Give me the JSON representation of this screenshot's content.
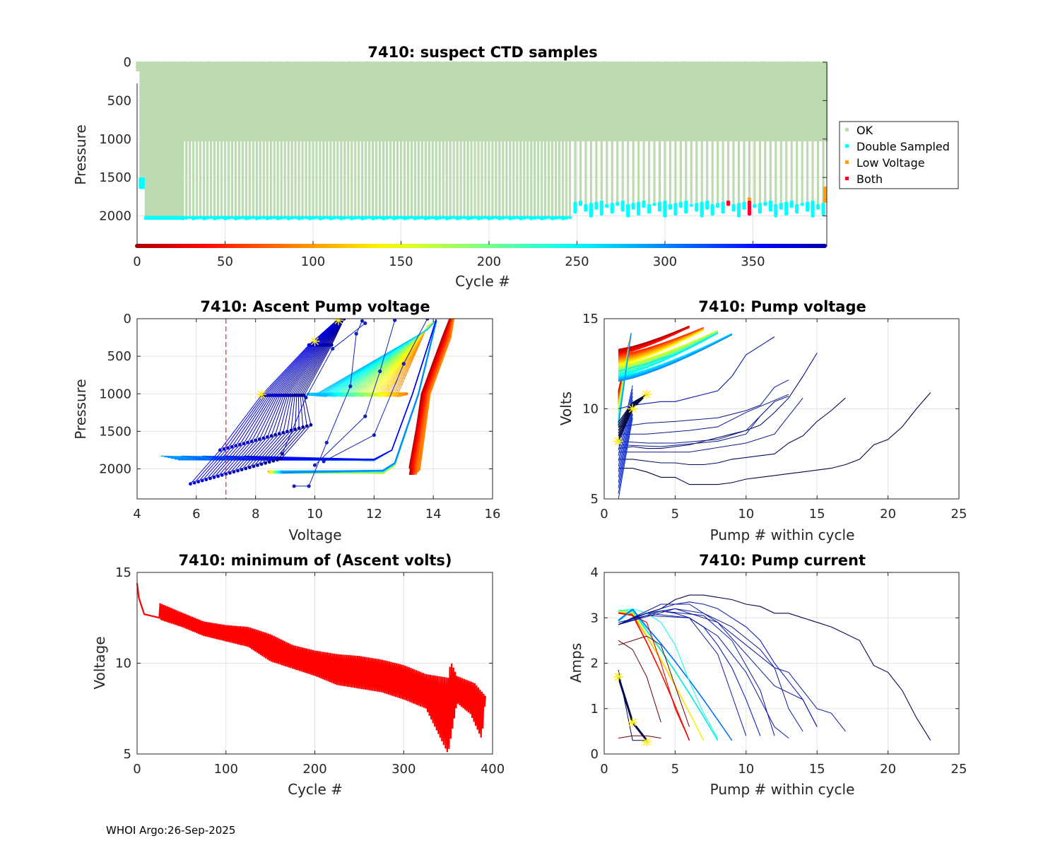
{
  "footer": "WHOI Argo:26-Sep-2025",
  "chart_data": [
    {
      "id": "suspect_ctd",
      "type": "scatter",
      "title": "7410: suspect CTD samples",
      "xlabel": "Cycle #",
      "ylabel": "Pressure",
      "xlim": [
        0,
        392
      ],
      "ylim": [
        2400,
        0
      ],
      "y_reversed": true,
      "xticks": [
        0,
        50,
        100,
        150,
        200,
        250,
        300,
        350
      ],
      "yticks": [
        0,
        500,
        1000,
        1500,
        2000
      ],
      "grid": true,
      "colorbar": "jet-reversed along x-axis (cycle color)",
      "legend": {
        "placement": "outside-right",
        "entries": [
          {
            "label": "OK",
            "color": "#bcdbb1"
          },
          {
            "label": "Double Sampled",
            "color": "#00ffff"
          },
          {
            "label": "Low Voltage",
            "color": "#ff9f10"
          },
          {
            "label": "Both",
            "color": "#ff0030"
          }
        ]
      },
      "profiles": {
        "note": "Each cycle is a vertical profile of OK samples from surface to park/profile depth; bottom samples flagged",
        "cycles_0_to_25_depth": 2030,
        "cycles_26_to_246_alternate_depths": [
          1030,
          2030
        ],
        "cycles_248_to_392_alternate_depths": [
          1030,
          1850
        ],
        "double_sampled_bottom_bands": [
          {
            "cycles": [
              0,
              1
            ],
            "pressure": [
              60,
              120
            ]
          },
          {
            "cycles": [
              2,
              5
            ],
            "pressure": [
              1500,
              1650
            ]
          },
          {
            "cycles": [
              5,
              246
            ],
            "pressure": [
              2000,
              2050
            ]
          },
          {
            "cycles": [
              248,
              392
            ],
            "pressure": [
              1800,
              2050
            ]
          }
        ],
        "both_flag_cycles": [
          336,
          340,
          344,
          348,
          352,
          388,
          391
        ],
        "low_voltage_cycles": [
          340,
          344,
          348,
          352,
          391
        ]
      }
    },
    {
      "id": "ascent_pump_voltage",
      "type": "line",
      "title": "7410: Ascent Pump voltage",
      "xlabel": "Voltage",
      "ylabel": "Pressure",
      "xlim": [
        4,
        16
      ],
      "ylim": [
        2400,
        0
      ],
      "y_reversed": true,
      "xticks": [
        4,
        6,
        8,
        10,
        12,
        14,
        16
      ],
      "yticks": [
        0,
        500,
        1000,
        1500,
        2000
      ],
      "grid": true,
      "threshold_line": {
        "x": 7,
        "style": "dashed",
        "color": "#e8202a"
      },
      "series_color": "jet colormap by cycle (early=dark red, late=dark blue)",
      "series_groups": [
        {
          "name": "early cycles",
          "points": [
            [
              13.3,
              2100
            ],
            [
              13.8,
              1000
            ],
            [
              14.4,
              200
            ],
            [
              14.7,
              0
            ]
          ]
        },
        {
          "name": "mid cycles (1000 dbar)",
          "points": [
            [
              13.1,
              1000
            ],
            [
              11.5,
              1000
            ],
            [
              10.5,
              1000
            ],
            [
              14.1,
              30
            ]
          ]
        },
        {
          "name": "mid cycles (2000 dbar)",
          "points": [
            [
              8.4,
              2020
            ],
            [
              12.3,
              2050
            ],
            [
              12.7,
              1950
            ],
            [
              14.1,
              0
            ]
          ]
        },
        {
          "name": "late cycles (1850 dbar)",
          "points": [
            [
              4.8,
              1830
            ],
            [
              12.0,
              1900
            ],
            [
              13.4,
              1000
            ],
            [
              14.1,
              0
            ]
          ]
        },
        {
          "name": "last cycles",
          "points": [
            [
              5.8,
              2200
            ],
            [
              8.2,
              1000
            ],
            [
              10.0,
              300
            ],
            [
              10.8,
              0
            ]
          ]
        }
      ],
      "markers": [
        {
          "label": "latest",
          "x": 10.8,
          "y": 20
        },
        {
          "label": "latest",
          "x": 10.0,
          "y": 300
        },
        {
          "label": "latest",
          "x": 8.2,
          "y": 1010
        }
      ]
    },
    {
      "id": "pump_voltage",
      "type": "line",
      "title": "7410: Pump voltage",
      "xlabel": "Pump # within cycle",
      "ylabel": "Volts",
      "xlim": [
        0,
        25
      ],
      "ylim": [
        5,
        15
      ],
      "xticks": [
        0,
        5,
        10,
        15,
        20,
        25
      ],
      "yticks": [
        5,
        10,
        15
      ],
      "grid": true,
      "series_color": "jet colormap by cycle",
      "series": [
        {
          "name": "early",
          "x": [
            1,
            2,
            3,
            4,
            5,
            6
          ],
          "y": [
            13.3,
            13.4,
            13.6,
            13.9,
            14.2,
            14.5
          ]
        },
        {
          "name": "mid",
          "x": [
            1,
            2,
            3,
            4,
            5,
            6,
            7,
            8
          ],
          "y": [
            12.1,
            12.3,
            12.5,
            12.8,
            13.0,
            13.4,
            13.8,
            14.2
          ]
        },
        {
          "name": "late-a",
          "x": [
            1,
            2,
            3,
            4,
            5,
            6,
            7,
            8,
            9,
            10,
            11,
            12
          ],
          "y": [
            10.0,
            10.2,
            10.3,
            10.4,
            10.4,
            10.6,
            10.8,
            11.0,
            11.8,
            13.0,
            13.5,
            14.0
          ]
        },
        {
          "name": "late-b",
          "x": [
            1,
            2,
            3,
            4,
            5,
            6,
            7,
            8,
            9,
            10,
            11,
            12,
            13,
            14,
            15
          ],
          "y": [
            7.8,
            7.9,
            7.8,
            7.8,
            7.9,
            8.0,
            8.2,
            8.4,
            8.6,
            8.8,
            9.1,
            9.8,
            10.6,
            11.8,
            13.1
          ]
        },
        {
          "name": "late-c",
          "x": [
            1,
            2,
            3,
            4,
            5,
            6,
            7,
            8,
            9,
            10,
            11,
            12,
            13,
            14,
            15,
            16,
            17
          ],
          "y": [
            7.2,
            7.2,
            7.1,
            7.0,
            7.0,
            6.9,
            6.9,
            7.0,
            7.2,
            7.3,
            7.4,
            7.5,
            8.1,
            8.5,
            9.3,
            9.9,
            10.6
          ]
        },
        {
          "name": "latest",
          "x": [
            1,
            2,
            3,
            4,
            5,
            6,
            7,
            8,
            9,
            10,
            11,
            12,
            13,
            14,
            15,
            16,
            17,
            18,
            19,
            20,
            21,
            22,
            23
          ],
          "y": [
            6.7,
            6.7,
            6.5,
            6.2,
            6.2,
            5.8,
            5.8,
            5.8,
            5.9,
            6.1,
            6.2,
            6.3,
            6.4,
            6.5,
            6.6,
            6.7,
            6.9,
            7.2,
            8.0,
            8.3,
            9.0,
            10.0,
            10.9
          ]
        }
      ],
      "markers": [
        {
          "x": 1,
          "y": 8.2
        },
        {
          "x": 2,
          "y": 10.0
        },
        {
          "x": 3,
          "y": 10.8
        }
      ]
    },
    {
      "id": "min_ascent_volts",
      "type": "line",
      "title": "7410: minimum of (Ascent volts)",
      "xlabel": "Cycle #",
      "ylabel": "Voltage",
      "xlim": [
        0,
        400
      ],
      "ylim": [
        5,
        15
      ],
      "xticks": [
        0,
        100,
        200,
        300,
        400
      ],
      "yticks": [
        5,
        10,
        15
      ],
      "grid": true,
      "color": "#ff0000",
      "upper_envelope": [
        [
          0,
          14.4
        ],
        [
          2,
          13.6
        ],
        [
          8,
          12.7
        ],
        [
          25,
          12.5
        ],
        [
          26,
          13.3
        ],
        [
          50,
          12.8
        ],
        [
          75,
          12.3
        ],
        [
          100,
          12.1
        ],
        [
          125,
          12.0
        ],
        [
          150,
          11.6
        ],
        [
          175,
          11.0
        ],
        [
          200,
          10.7
        ],
        [
          225,
          10.5
        ],
        [
          250,
          10.4
        ],
        [
          275,
          10.2
        ],
        [
          300,
          9.9
        ],
        [
          325,
          9.4
        ],
        [
          350,
          9.2
        ],
        [
          353,
          10.1
        ],
        [
          360,
          9.3
        ],
        [
          380,
          8.9
        ],
        [
          392,
          8.2
        ]
      ],
      "lower_envelope": [
        [
          0,
          13.1
        ],
        [
          25,
          12.4
        ],
        [
          50,
          12.0
        ],
        [
          75,
          11.5
        ],
        [
          100,
          11.2
        ],
        [
          125,
          10.9
        ],
        [
          150,
          10.1
        ],
        [
          175,
          9.7
        ],
        [
          200,
          9.3
        ],
        [
          225,
          8.8
        ],
        [
          250,
          8.6
        ],
        [
          275,
          8.4
        ],
        [
          300,
          8.0
        ],
        [
          325,
          7.5
        ],
        [
          340,
          6.0
        ],
        [
          350,
          5.0
        ],
        [
          360,
          7.8
        ],
        [
          375,
          7.2
        ],
        [
          388,
          5.8
        ],
        [
          392,
          8.2
        ]
      ]
    },
    {
      "id": "pump_current",
      "type": "line",
      "title": "7410: Pump current",
      "xlabel": "Pump # within cycle",
      "ylabel": "Amps",
      "xlim": [
        0,
        25
      ],
      "ylim": [
        0,
        4
      ],
      "xticks": [
        0,
        5,
        10,
        15,
        20,
        25
      ],
      "yticks": [
        0,
        1,
        2,
        3,
        4
      ],
      "grid": true,
      "series_color": "jet colormap by cycle",
      "series": [
        {
          "name": "early",
          "x": [
            1,
            2,
            3,
            4,
            5,
            6
          ],
          "y": [
            3.1,
            3.05,
            2.9,
            2.0,
            1.0,
            0.3
          ]
        },
        {
          "name": "mid",
          "x": [
            1,
            2,
            3,
            4,
            5,
            6,
            7,
            8
          ],
          "y": [
            3.15,
            3.2,
            3.1,
            2.9,
            2.4,
            1.6,
            0.9,
            0.35
          ]
        },
        {
          "name": "late-a",
          "x": [
            1,
            2,
            3,
            4,
            5,
            6,
            7,
            8,
            9,
            10,
            11
          ],
          "y": [
            2.85,
            3.0,
            3.1,
            3.15,
            3.1,
            3.0,
            2.8,
            2.4,
            1.9,
            1.2,
            0.4
          ]
        },
        {
          "name": "late-b",
          "x": [
            1,
            2,
            3,
            4,
            5,
            6,
            7,
            8,
            9,
            10,
            11,
            12,
            13,
            14,
            15
          ],
          "y": [
            2.85,
            3.0,
            3.1,
            3.2,
            3.3,
            3.35,
            3.3,
            3.2,
            3.0,
            2.8,
            2.5,
            2.0,
            1.6,
            1.2,
            0.6
          ]
        },
        {
          "name": "latest",
          "x": [
            1,
            2,
            3,
            4,
            5,
            6,
            7,
            8,
            9,
            10,
            11,
            12,
            13,
            14,
            15,
            16,
            17,
            18,
            19,
            20,
            21,
            22,
            23
          ],
          "y": [
            2.85,
            3.0,
            3.1,
            3.2,
            3.4,
            3.5,
            3.5,
            3.45,
            3.4,
            3.3,
            3.25,
            3.1,
            3.1,
            3.0,
            2.9,
            2.8,
            2.65,
            2.5,
            1.95,
            1.8,
            1.4,
            0.8,
            0.3
          ]
        },
        {
          "name": "short",
          "x": [
            1,
            2,
            3
          ],
          "y": [
            1.7,
            0.7,
            0.3
          ]
        }
      ],
      "markers": [
        {
          "x": 1,
          "y": 1.7
        },
        {
          "x": 2,
          "y": 0.7
        },
        {
          "x": 3,
          "y": 0.27
        }
      ]
    }
  ]
}
